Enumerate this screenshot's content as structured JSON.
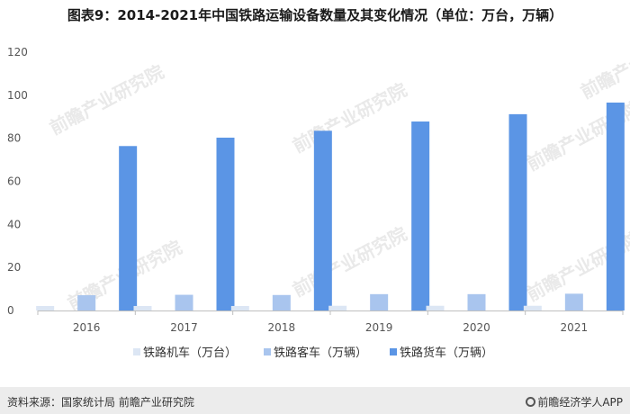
{
  "title": "图表9：2014-2021年中国铁路运输设备数量及其变化情况（单位：万台，万辆）",
  "watermark": "前瞻产业研究院",
  "footer": {
    "source": "资料来源：国家统计局 前瞻产业研究院",
    "brand": "前瞻经济学人APP"
  },
  "chart_data": {
    "type": "bar",
    "title": "图表9：2014-2021年中国铁路运输设备数量及其变化情况（单位：万台，万辆）",
    "categories": [
      "2016",
      "2017",
      "2018",
      "2019",
      "2020",
      "2021"
    ],
    "series": [
      {
        "name": "铁路机车（万台）",
        "color": "#dce6f4",
        "values": [
          2.1,
          2.1,
          2.1,
          2.2,
          2.2,
          2.2
        ]
      },
      {
        "name": "铁路客车（万辆）",
        "color": "#a9c5ee",
        "values": [
          7.1,
          7.3,
          7.2,
          7.6,
          7.6,
          7.8
        ]
      },
      {
        "name": "铁路货车（万辆）",
        "color": "#5b95e5",
        "values": [
          76.4,
          80.3,
          83.5,
          87.8,
          91.2,
          96.6
        ]
      }
    ],
    "yticks": [
      0,
      20,
      40,
      60,
      80,
      100,
      120
    ],
    "ylim": [
      0,
      120
    ],
    "grid": false,
    "legend_position": "bottom"
  }
}
